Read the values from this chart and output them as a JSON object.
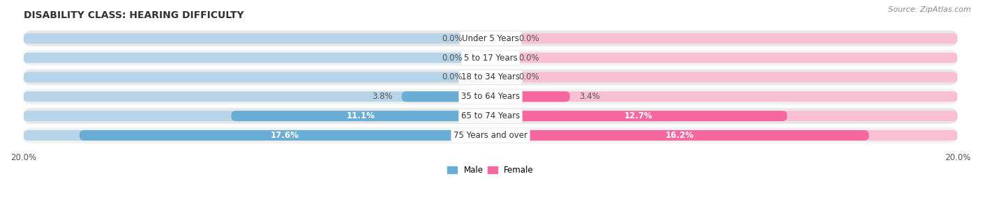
{
  "title": "DISABILITY CLASS: HEARING DIFFICULTY",
  "source": "Source: ZipAtlas.com",
  "categories": [
    "Under 5 Years",
    "5 to 17 Years",
    "18 to 34 Years",
    "35 to 64 Years",
    "65 to 74 Years",
    "75 Years and over"
  ],
  "male_values": [
    0.0,
    0.0,
    0.0,
    3.8,
    11.1,
    17.6
  ],
  "female_values": [
    0.0,
    0.0,
    0.0,
    3.4,
    12.7,
    16.2
  ],
  "male_color": "#6aaed6",
  "female_color": "#f768a1",
  "male_color_light": "#b8d4e8",
  "female_color_light": "#f9c0d4",
  "row_bg_odd": "#f2f2f2",
  "row_bg_even": "#e8e8e8",
  "axis_max": 20.0,
  "bar_height": 0.54,
  "label_fontsize": 8.5,
  "title_fontsize": 10,
  "source_fontsize": 8,
  "tick_fontsize": 8.5
}
